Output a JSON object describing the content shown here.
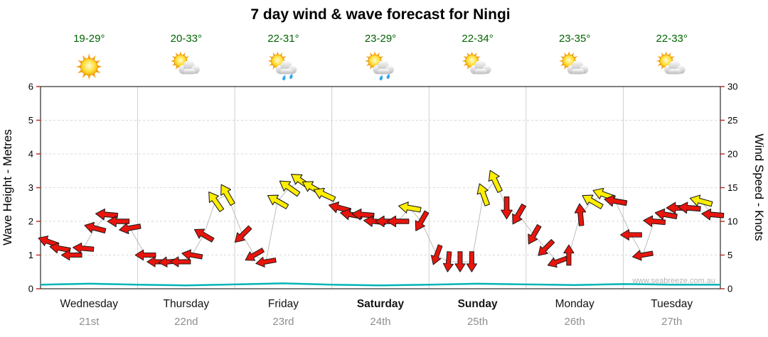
{
  "chart_data": {
    "type": "scatter",
    "title": "7 day wind & wave forecast for Ningi",
    "watermark": "www.seabreeze.com.au",
    "left_axis": {
      "label": "Wave Height - Metres",
      "min": 0,
      "max": 6,
      "ticks": [
        0,
        1,
        2,
        3,
        4,
        5,
        6
      ]
    },
    "right_axis": {
      "label": "Wind Speed - Knots",
      "min": 0,
      "max": 30,
      "ticks": [
        0,
        5,
        10,
        15,
        20,
        25,
        30
      ]
    },
    "days": [
      {
        "name": "Wednesday",
        "date": "21st",
        "temp": "19-29°",
        "icon": "sunny",
        "bold": false
      },
      {
        "name": "Thursday",
        "date": "22nd",
        "temp": "20-33°",
        "icon": "partly-cloudy",
        "bold": false
      },
      {
        "name": "Friday",
        "date": "23rd",
        "temp": "22-31°",
        "icon": "showers",
        "bold": false
      },
      {
        "name": "Saturday",
        "date": "24th",
        "temp": "23-29°",
        "icon": "showers",
        "bold": true
      },
      {
        "name": "Sunday",
        "date": "25th",
        "temp": "22-34°",
        "icon": "partly-cloudy",
        "bold": true
      },
      {
        "name": "Monday",
        "date": "26th",
        "temp": "23-35°",
        "icon": "partly-cloudy",
        "bold": false
      },
      {
        "name": "Tuesday",
        "date": "27th",
        "temp": "22-33°",
        "icon": "partly-cloudy",
        "bold": false
      }
    ],
    "wind_arrows": [
      {
        "x": 0.08,
        "kn": 7,
        "dir": 200,
        "c": "r"
      },
      {
        "x": 0.2,
        "kn": 6,
        "dir": 190,
        "c": "r"
      },
      {
        "x": 0.32,
        "kn": 5,
        "dir": 180,
        "c": "r"
      },
      {
        "x": 0.44,
        "kn": 6,
        "dir": 185,
        "c": "r"
      },
      {
        "x": 0.56,
        "kn": 9,
        "dir": 195,
        "c": "r"
      },
      {
        "x": 0.68,
        "kn": 11,
        "dir": 185,
        "c": "r"
      },
      {
        "x": 0.8,
        "kn": 10,
        "dir": 180,
        "c": "r"
      },
      {
        "x": 0.92,
        "kn": 9,
        "dir": 170,
        "c": "r"
      },
      {
        "x": 1.08,
        "kn": 5,
        "dir": 180,
        "c": "r"
      },
      {
        "x": 1.2,
        "kn": 4,
        "dir": 180,
        "c": "r"
      },
      {
        "x": 1.32,
        "kn": 4,
        "dir": 175,
        "c": "r"
      },
      {
        "x": 1.44,
        "kn": 4,
        "dir": 180,
        "c": "r"
      },
      {
        "x": 1.56,
        "kn": 5,
        "dir": 190,
        "c": "r"
      },
      {
        "x": 1.68,
        "kn": 8,
        "dir": 210,
        "c": "r"
      },
      {
        "x": 1.8,
        "kn": 13,
        "dir": 235,
        "c": "y"
      },
      {
        "x": 1.92,
        "kn": 14,
        "dir": 240,
        "c": "y"
      },
      {
        "x": 2.08,
        "kn": 8,
        "dir": 135,
        "c": "r"
      },
      {
        "x": 2.2,
        "kn": 5,
        "dir": 150,
        "c": "r"
      },
      {
        "x": 2.32,
        "kn": 4,
        "dir": 170,
        "c": "r"
      },
      {
        "x": 2.44,
        "kn": 13,
        "dir": 210,
        "c": "y"
      },
      {
        "x": 2.56,
        "kn": 15,
        "dir": 215,
        "c": "y"
      },
      {
        "x": 2.68,
        "kn": 16,
        "dir": 215,
        "c": "y"
      },
      {
        "x": 2.8,
        "kn": 15,
        "dir": 210,
        "c": "y"
      },
      {
        "x": 2.92,
        "kn": 14,
        "dir": 205,
        "c": "y"
      },
      {
        "x": 3.08,
        "kn": 12,
        "dir": 195,
        "c": "r"
      },
      {
        "x": 3.2,
        "kn": 11,
        "dir": 190,
        "c": "r"
      },
      {
        "x": 3.32,
        "kn": 11,
        "dir": 185,
        "c": "r"
      },
      {
        "x": 3.44,
        "kn": 10,
        "dir": 185,
        "c": "r"
      },
      {
        "x": 3.56,
        "kn": 10,
        "dir": 180,
        "c": "r"
      },
      {
        "x": 3.68,
        "kn": 10,
        "dir": 180,
        "c": "r"
      },
      {
        "x": 3.8,
        "kn": 12,
        "dir": 190,
        "c": "y"
      },
      {
        "x": 3.92,
        "kn": 10,
        "dir": 120,
        "c": "r"
      },
      {
        "x": 4.08,
        "kn": 5,
        "dir": 110,
        "c": "r"
      },
      {
        "x": 4.2,
        "kn": 4,
        "dir": 95,
        "c": "r"
      },
      {
        "x": 4.32,
        "kn": 4,
        "dir": 90,
        "c": "r"
      },
      {
        "x": 4.44,
        "kn": 4,
        "dir": 90,
        "c": "r"
      },
      {
        "x": 4.56,
        "kn": 14,
        "dir": 250,
        "c": "y"
      },
      {
        "x": 4.68,
        "kn": 16,
        "dir": 245,
        "c": "y"
      },
      {
        "x": 4.8,
        "kn": 12,
        "dir": 90,
        "c": "r"
      },
      {
        "x": 4.92,
        "kn": 11,
        "dir": 120,
        "c": "r"
      },
      {
        "x": 5.08,
        "kn": 8,
        "dir": 120,
        "c": "r"
      },
      {
        "x": 5.2,
        "kn": 6,
        "dir": 135,
        "c": "r"
      },
      {
        "x": 5.32,
        "kn": 4,
        "dir": 160,
        "c": "r"
      },
      {
        "x": 5.44,
        "kn": 5,
        "dir": 270,
        "c": "r"
      },
      {
        "x": 5.56,
        "kn": 11,
        "dir": 265,
        "c": "r"
      },
      {
        "x": 5.68,
        "kn": 13,
        "dir": 210,
        "c": "y"
      },
      {
        "x": 5.8,
        "kn": 14,
        "dir": 200,
        "c": "y"
      },
      {
        "x": 5.92,
        "kn": 13,
        "dir": 190,
        "c": "r"
      },
      {
        "x": 6.08,
        "kn": 8,
        "dir": 180,
        "c": "r"
      },
      {
        "x": 6.2,
        "kn": 5,
        "dir": 170,
        "c": "r"
      },
      {
        "x": 6.32,
        "kn": 10,
        "dir": 185,
        "c": "r"
      },
      {
        "x": 6.44,
        "kn": 11,
        "dir": 190,
        "c": "r"
      },
      {
        "x": 6.56,
        "kn": 12,
        "dir": 180,
        "c": "r"
      },
      {
        "x": 6.68,
        "kn": 12,
        "dir": 185,
        "c": "r"
      },
      {
        "x": 6.8,
        "kn": 13,
        "dir": 195,
        "c": "y"
      },
      {
        "x": 6.92,
        "kn": 11,
        "dir": 185,
        "c": "r"
      }
    ],
    "wave_height_m": [
      0.12,
      0.15,
      0.12,
      0.1,
      0.13,
      0.16,
      0.12,
      0.1,
      0.12,
      0.15,
      0.13,
      0.11,
      0.14,
      0.12,
      0.12
    ],
    "colors": {
      "r": "#e8150d",
      "y": "#ffee00",
      "arrow_outline": "#1a1a1a",
      "temp": "#006400",
      "grid": "#d9d9d9",
      "day_separator": "#cfcfcf",
      "tick": "#c03020",
      "axis": "#000000",
      "wave": "#00b4b4",
      "connector": "#bdbdbd"
    }
  }
}
